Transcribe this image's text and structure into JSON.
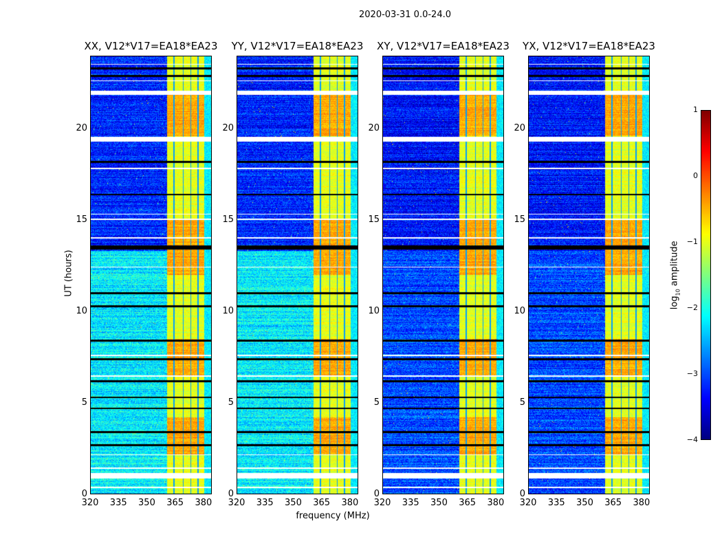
{
  "suptitle": "2020-03-31 0.0-24.0",
  "ylabel": "UT (hours)",
  "xlabel": "frequency (MHz)",
  "chart_data": [
    {
      "type": "heatmap",
      "title": "XX, V12*V17=EA18*EA23",
      "pol": "XX",
      "xlim": [
        320,
        384.4
      ],
      "ylim": [
        0,
        24
      ],
      "xticks": [
        320,
        335,
        350,
        365,
        380
      ],
      "yticks": [
        0,
        5,
        10,
        15,
        20
      ],
      "background_log_amp": -3.2,
      "low_hours_background_log_amp": -2.2,
      "low_hours_end": 13.3
    },
    {
      "type": "heatmap",
      "title": "YY, V12*V17=EA18*EA23",
      "pol": "YY",
      "xlim": [
        320,
        384.4
      ],
      "ylim": [
        0,
        24
      ],
      "xticks": [
        320,
        335,
        350,
        365,
        380
      ],
      "yticks": [
        0,
        5,
        10,
        15,
        20
      ],
      "background_log_amp": -3.2,
      "low_hours_background_log_amp": -2.2,
      "low_hours_end": 13.3
    },
    {
      "type": "heatmap",
      "title": "XY, V12*V17=EA18*EA23",
      "pol": "XY",
      "xlim": [
        320,
        384.4
      ],
      "ylim": [
        0,
        24
      ],
      "xticks": [
        320,
        335,
        350,
        365,
        380
      ],
      "yticks": [
        0,
        5,
        10,
        15,
        20
      ],
      "background_log_amp": -3.3,
      "low_hours_background_log_amp": -3.0,
      "low_hours_end": 13.3
    },
    {
      "type": "heatmap",
      "title": "YX, V12*V17=EA18*EA23",
      "pol": "YX",
      "xlim": [
        320,
        384.4
      ],
      "ylim": [
        0,
        24
      ],
      "xticks": [
        320,
        335,
        350,
        365,
        380
      ],
      "yticks": [
        0,
        5,
        10,
        15,
        20
      ],
      "background_log_amp": -3.3,
      "low_hours_background_log_amp": -3.0,
      "low_hours_end": 13.3
    }
  ],
  "rfi_band_mhz": [
    360.7,
    380.4
  ],
  "rfi_band_log_amp": -1.0,
  "subband_edges_mhz": [
    364.5,
    369.3,
    373.3,
    377.2
  ],
  "strong_hours": [
    [
      2.2,
      4.2
    ],
    [
      12.0,
      15.0
    ],
    [
      19.6,
      22.0
    ],
    [
      6.5,
      8.5
    ]
  ],
  "flagged_gaps_hours": [
    [
      0.85,
      1.17
    ],
    [
      19.3,
      19.55
    ],
    [
      21.85,
      22.08
    ],
    [
      0.35,
      0.42
    ],
    [
      1.4,
      1.46
    ],
    [
      2.15,
      2.2
    ],
    [
      6.45,
      6.52
    ],
    [
      7.55,
      7.62
    ],
    [
      14.0,
      14.06
    ],
    [
      15.0,
      15.08
    ],
    [
      17.8,
      17.86
    ],
    [
      22.6,
      22.66
    ],
    [
      23.5,
      23.55
    ],
    [
      15.3,
      15.35
    ],
    [
      12.4,
      12.45
    ]
  ],
  "dark_rows_hours": [
    2.7,
    3.4,
    4.7,
    6.2,
    7.4,
    10.3,
    13.45,
    13.55,
    16.4,
    18.2,
    22.9,
    23.3,
    11.0,
    8.4,
    5.3
  ],
  "colorbar": {
    "label": "log10 amplitude",
    "label_base": "log",
    "label_sub": "10",
    "label_rest": " amplitude",
    "vmin": -4,
    "vmax": 1,
    "ticks": [
      "1",
      "0",
      "−1",
      "−2",
      "−3",
      "−4"
    ],
    "tick_values": [
      1,
      0,
      -1,
      -2,
      -3,
      -4
    ],
    "colormap": "jet"
  }
}
